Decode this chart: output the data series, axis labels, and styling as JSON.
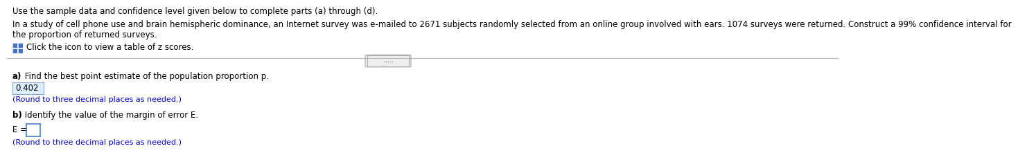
{
  "line1": "Use the sample data and confidence level given below to complete parts (a) through (d).",
  "line2": "In a study of cell phone use and brain hemispheric dominance, an Internet survey was e-mailed to 2671 subjects randomly selected from an online group involved with ears. 1074 surveys were returned. Construct a 99% confidence interval for",
  "line2b": "the proportion of returned surveys.",
  "icon_text": "Click the icon to view a table of z scores.",
  "dots": ".....",
  "part_a_bold": "a)",
  "part_a_rest": " Find the best point estimate of the population proportion p.",
  "part_a_answer": "0.402",
  "part_a_hint": "(Round to three decimal places as needed.)",
  "part_b_bold": "b)",
  "part_b_rest": " Identify the value of the margin of error E.",
  "part_b_eq": "E =",
  "part_b_hint": "(Round to three decimal places as needed.)",
  "bg_color": "#ffffff",
  "text_color": "#000000",
  "hint_color": "#0000cc",
  "answer_box_facecolor": "#ddeeff",
  "answer_box_edgecolor": "#88aacc",
  "ebox_edgecolor": "#4488cc",
  "divider_color": "#bbbbbb",
  "icon_color": "#4472c4",
  "dots_btn_face": "#eeeeee",
  "dots_btn_edge": "#aaaaaa"
}
